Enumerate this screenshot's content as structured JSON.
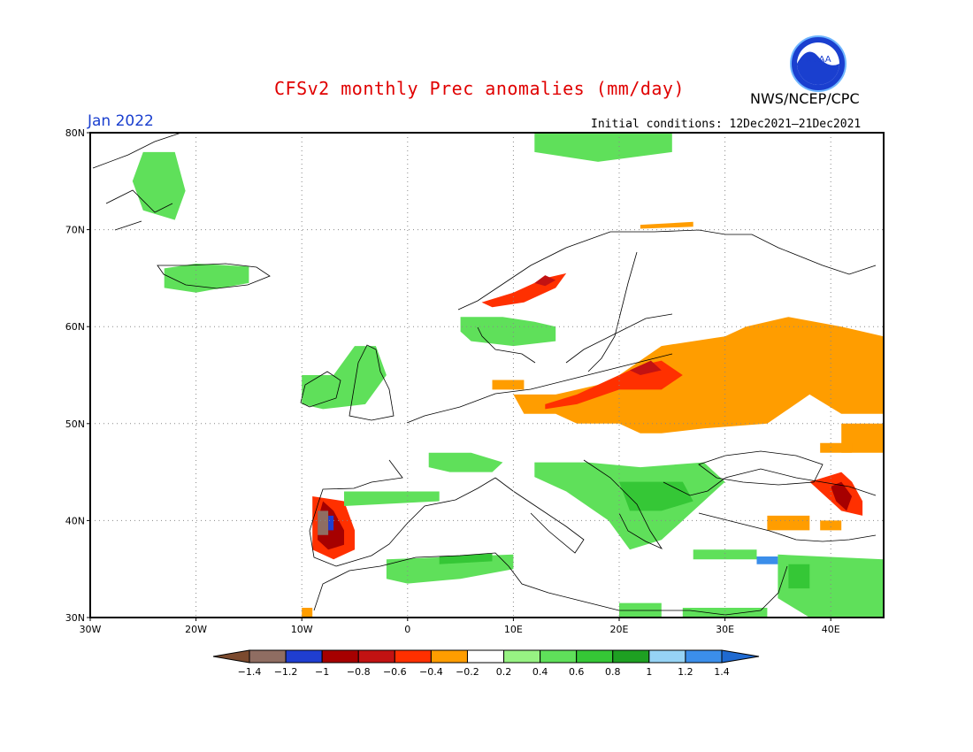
{
  "header": {
    "title": "CFSv2 monthly Prec anomalies (mm/day)",
    "month": "Jan 2022",
    "initial_conditions": "Initial conditions: 12Dec2021—21Dec2021",
    "agency": "NWS/NCEP/CPC",
    "logo_text": "NOAA"
  },
  "map": {
    "projection": "equirectangular",
    "lon_range": [
      -30,
      45
    ],
    "lat_range": [
      30,
      80
    ],
    "lat_ticks": [
      {
        "value": 80,
        "label": "80N"
      },
      {
        "value": 70,
        "label": "70N"
      },
      {
        "value": 60,
        "label": "60N"
      },
      {
        "value": 50,
        "label": "50N"
      },
      {
        "value": 40,
        "label": "40N"
      },
      {
        "value": 30,
        "label": "30N"
      }
    ],
    "lon_ticks": [
      {
        "value": -30,
        "label": "30W"
      },
      {
        "value": -20,
        "label": "20W"
      },
      {
        "value": -10,
        "label": "10W"
      },
      {
        "value": 0,
        "label": "0"
      },
      {
        "value": 10,
        "label": "10E"
      },
      {
        "value": 20,
        "label": "20E"
      },
      {
        "value": 30,
        "label": "30E"
      },
      {
        "value": 40,
        "label": "40E"
      }
    ],
    "anomaly_regions": [
      {
        "name": "central-eastern-europe-dry",
        "category": "-0.4",
        "polygon": [
          [
            20,
            55
          ],
          [
            24,
            58
          ],
          [
            30,
            59
          ],
          [
            32,
            60
          ],
          [
            36,
            61
          ],
          [
            41,
            60
          ],
          [
            45,
            59
          ],
          [
            45,
            51
          ],
          [
            41,
            51
          ],
          [
            38,
            53
          ],
          [
            34,
            50
          ],
          [
            28,
            49.5
          ],
          [
            24,
            49
          ],
          [
            22,
            49
          ],
          [
            20,
            50
          ],
          [
            16,
            50
          ],
          [
            14,
            51
          ],
          [
            11,
            51
          ],
          [
            10,
            53
          ],
          [
            14,
            53
          ],
          [
            18,
            54
          ]
        ]
      },
      {
        "name": "eastern-russia-dry",
        "category": "-0.4",
        "polygon": [
          [
            41,
            50
          ],
          [
            45,
            50
          ],
          [
            45,
            47
          ],
          [
            41,
            47
          ]
        ]
      },
      {
        "name": "baltic-poland-wet-deficit",
        "category": "-0.6",
        "polygon": [
          [
            13,
            52
          ],
          [
            16,
            53
          ],
          [
            20,
            55
          ],
          [
            22,
            56
          ],
          [
            24,
            56.5
          ],
          [
            26,
            55
          ],
          [
            24,
            53.5
          ],
          [
            20,
            53.5
          ],
          [
            16,
            52
          ],
          [
            13,
            51.5
          ]
        ]
      },
      {
        "name": "lithuania-core",
        "category": "-0.8",
        "polygon": [
          [
            21,
            55.5
          ],
          [
            23,
            56.5
          ],
          [
            24,
            55.5
          ],
          [
            22,
            55
          ]
        ]
      },
      {
        "name": "norway-coast-deficit",
        "category": "-0.6",
        "polygon": [
          [
            7,
            62.5
          ],
          [
            10,
            63.5
          ],
          [
            13,
            65
          ],
          [
            15,
            65.5
          ],
          [
            14,
            64
          ],
          [
            11,
            62.5
          ],
          [
            8,
            62
          ]
        ]
      },
      {
        "name": "norway-coast-core",
        "category": "-0.8",
        "polygon": [
          [
            12,
            64.5
          ],
          [
            13,
            65.3
          ],
          [
            14,
            64.8
          ],
          [
            13,
            64.2
          ]
        ]
      },
      {
        "name": "denmark-dry",
        "category": "-0.4",
        "polygon": [
          [
            8,
            54.5
          ],
          [
            11,
            54.5
          ],
          [
            11,
            53.5
          ],
          [
            8,
            53.5
          ]
        ]
      },
      {
        "name": "iberia-west-dry",
        "category": "-0.6",
        "polygon": [
          [
            -9,
            42.5
          ],
          [
            -6,
            42
          ],
          [
            -5,
            39
          ],
          [
            -5,
            37
          ],
          [
            -7,
            36
          ],
          [
            -9,
            37
          ],
          [
            -9,
            40
          ]
        ]
      },
      {
        "name": "iberia-west-core",
        "category": "-1",
        "polygon": [
          [
            -8,
            42
          ],
          [
            -7,
            41
          ],
          [
            -6,
            39
          ],
          [
            -6,
            37.5
          ],
          [
            -7.5,
            37
          ],
          [
            -8.5,
            38
          ],
          [
            -8.5,
            40
          ]
        ]
      },
      {
        "name": "iberia-west-extreme",
        "category": "-1.4",
        "polygon": [
          [
            -8.5,
            41
          ],
          [
            -7.5,
            41
          ],
          [
            -7.5,
            38.5
          ],
          [
            -8.5,
            38.5
          ]
        ]
      },
      {
        "name": "iberia-blue-cells",
        "category": "-1.2",
        "polygon": [
          [
            -7.5,
            40.5
          ],
          [
            -7,
            40.5
          ],
          [
            -7,
            39
          ],
          [
            -7.5,
            39
          ]
        ]
      },
      {
        "name": "caucasus-dry",
        "category": "-0.6",
        "polygon": [
          [
            38,
            44
          ],
          [
            41,
            45
          ],
          [
            42,
            44
          ],
          [
            43,
            42
          ],
          [
            43,
            40.5
          ],
          [
            41,
            41
          ],
          [
            39,
            43
          ]
        ]
      },
      {
        "name": "caucasus-core",
        "category": "-1",
        "polygon": [
          [
            40,
            43.5
          ],
          [
            41,
            44
          ],
          [
            42,
            42.5
          ],
          [
            41.5,
            41
          ],
          [
            40.5,
            42
          ]
        ]
      },
      {
        "name": "turkey-east-dry",
        "category": "-0.4",
        "polygon": [
          [
            34,
            40.5
          ],
          [
            38,
            40.5
          ],
          [
            38,
            39
          ],
          [
            34,
            39
          ]
        ]
      },
      {
        "name": "turkey-east-dry-2",
        "category": "-0.4",
        "polygon": [
          [
            39,
            40
          ],
          [
            41,
            40
          ],
          [
            41,
            39
          ],
          [
            39,
            39
          ]
        ]
      },
      {
        "name": "russia-far-east-dry",
        "category": "-0.4",
        "polygon": [
          [
            39,
            48
          ],
          [
            42,
            48
          ],
          [
            42,
            47
          ],
          [
            39,
            47
          ]
        ]
      },
      {
        "name": "svalbard-coast-dry",
        "category": "-0.4",
        "polygon": [
          [
            22,
            70.5
          ],
          [
            27,
            70.8
          ],
          [
            27,
            70.3
          ],
          [
            22,
            70.1
          ]
        ]
      },
      {
        "name": "morocco-dry",
        "category": "-0.4",
        "polygon": [
          [
            -10,
            31
          ],
          [
            -9,
            31
          ],
          [
            -9,
            30
          ],
          [
            -10,
            30
          ]
        ]
      },
      {
        "name": "greenland-sea-wet",
        "category": "0.4",
        "polygon": [
          [
            -25,
            78
          ],
          [
            -22,
            78
          ],
          [
            -21,
            74
          ],
          [
            -22,
            71
          ],
          [
            -25,
            72
          ],
          [
            -26,
            75
          ]
        ]
      },
      {
        "name": "iceland-wet",
        "category": "0.4",
        "polygon": [
          [
            -23,
            66
          ],
          [
            -20,
            66.5
          ],
          [
            -15,
            66.2
          ],
          [
            -15,
            64.5
          ],
          [
            -20,
            63.5
          ],
          [
            -23,
            64
          ]
        ]
      },
      {
        "name": "svalbard-wet",
        "category": "0.4",
        "polygon": [
          [
            12,
            80
          ],
          [
            25,
            80
          ],
          [
            25,
            78
          ],
          [
            18,
            77
          ],
          [
            12,
            78
          ]
        ]
      },
      {
        "name": "scandinavia-wet",
        "category": "0.4",
        "polygon": [
          [
            5,
            61
          ],
          [
            9,
            61
          ],
          [
            12,
            60.5
          ],
          [
            14,
            60
          ],
          [
            14,
            58.5
          ],
          [
            10,
            58
          ],
          [
            6,
            58.5
          ],
          [
            5,
            59.5
          ]
        ]
      },
      {
        "name": "british-isles-wet",
        "category": "0.4",
        "polygon": [
          [
            -10,
            55
          ],
          [
            -7,
            55
          ],
          [
            -5,
            58
          ],
          [
            -3,
            58
          ],
          [
            -2,
            55
          ],
          [
            -4,
            52
          ],
          [
            -8,
            51.5
          ],
          [
            -10,
            52
          ]
        ]
      },
      {
        "name": "balkans-wet",
        "category": "0.4",
        "polygon": [
          [
            12,
            46
          ],
          [
            17,
            46
          ],
          [
            22,
            45.5
          ],
          [
            28,
            46
          ],
          [
            30,
            44
          ],
          [
            28,
            42
          ],
          [
            26,
            40
          ],
          [
            24,
            38
          ],
          [
            21,
            37
          ],
          [
            19,
            40
          ],
          [
            15,
            43
          ],
          [
            12,
            44.5
          ]
        ]
      },
      {
        "name": "balkans-core",
        "category": "0.6",
        "polygon": [
          [
            20,
            44
          ],
          [
            26,
            44
          ],
          [
            27,
            42
          ],
          [
            24,
            41
          ],
          [
            21,
            41
          ]
        ]
      },
      {
        "name": "north-africa-wet",
        "category": "0.4",
        "polygon": [
          [
            -2,
            36
          ],
          [
            10,
            36.5
          ],
          [
            10,
            35
          ],
          [
            5,
            34
          ],
          [
            0,
            33.5
          ],
          [
            -2,
            34
          ]
        ]
      },
      {
        "name": "north-africa-core",
        "category": "0.6",
        "polygon": [
          [
            3,
            36.3
          ],
          [
            8,
            36.6
          ],
          [
            8,
            35.8
          ],
          [
            3,
            35.5
          ]
        ]
      },
      {
        "name": "france-wet",
        "category": "0.4",
        "polygon": [
          [
            2,
            47
          ],
          [
            6,
            47
          ],
          [
            9,
            46
          ],
          [
            8,
            45
          ],
          [
            4,
            45
          ],
          [
            2,
            45.5
          ]
        ]
      },
      {
        "name": "spain-north-wet",
        "category": "0.4",
        "polygon": [
          [
            -6,
            43
          ],
          [
            3,
            43
          ],
          [
            3,
            42
          ],
          [
            -6,
            41.5
          ]
        ]
      },
      {
        "name": "levant-wet",
        "category": "0.4",
        "polygon": [
          [
            35,
            36.5
          ],
          [
            45,
            36
          ],
          [
            45,
            30
          ],
          [
            38,
            30
          ],
          [
            35,
            32
          ]
        ]
      },
      {
        "name": "levant-core",
        "category": "0.6",
        "polygon": [
          [
            36,
            35.5
          ],
          [
            38,
            35.5
          ],
          [
            38,
            33
          ],
          [
            36,
            33
          ]
        ]
      },
      {
        "name": "turkey-coast-wet",
        "category": "0.4",
        "polygon": [
          [
            27,
            37
          ],
          [
            33,
            37
          ],
          [
            33,
            36
          ],
          [
            27,
            36
          ]
        ]
      },
      {
        "name": "levant-blue",
        "category": "1.2",
        "polygon": [
          [
            33,
            36.3
          ],
          [
            35,
            36.3
          ],
          [
            35,
            35.5
          ],
          [
            33,
            35.5
          ]
        ]
      },
      {
        "name": "libya-wet",
        "category": "0.4",
        "polygon": [
          [
            20,
            31.5
          ],
          [
            24,
            31.5
          ],
          [
            24,
            30
          ],
          [
            20,
            30
          ]
        ]
      },
      {
        "name": "egypt-wet",
        "category": "0.4",
        "polygon": [
          [
            26,
            31
          ],
          [
            34,
            31
          ],
          [
            34,
            30
          ],
          [
            26,
            30
          ]
        ]
      }
    ]
  },
  "colorbar": {
    "categories": [
      "-1.4",
      "-1.2",
      "-1",
      "-0.8",
      "-0.6",
      "-0.4",
      "-0.2",
      "0.2",
      "0.4",
      "0.6",
      "0.8",
      "1",
      "1.2",
      "1.4"
    ],
    "colors": [
      "#7b4a2e",
      "#8f6d62",
      "#1f3ed1",
      "#a60000",
      "#c21212",
      "#ff3000",
      "#ff9d00",
      "#ffffff",
      "#97f283",
      "#5fe05a",
      "#35c736",
      "#1ea022",
      "#96d3f5",
      "#3b8eea",
      "#1f6ad1"
    ],
    "labels": [
      "−1.4",
      "−1.2",
      "−1",
      "−0.8",
      "−0.6",
      "−0.4",
      "−0.2",
      "0.2",
      "0.4",
      "0.6",
      "0.8",
      "1",
      "1.2",
      "1.4"
    ]
  }
}
